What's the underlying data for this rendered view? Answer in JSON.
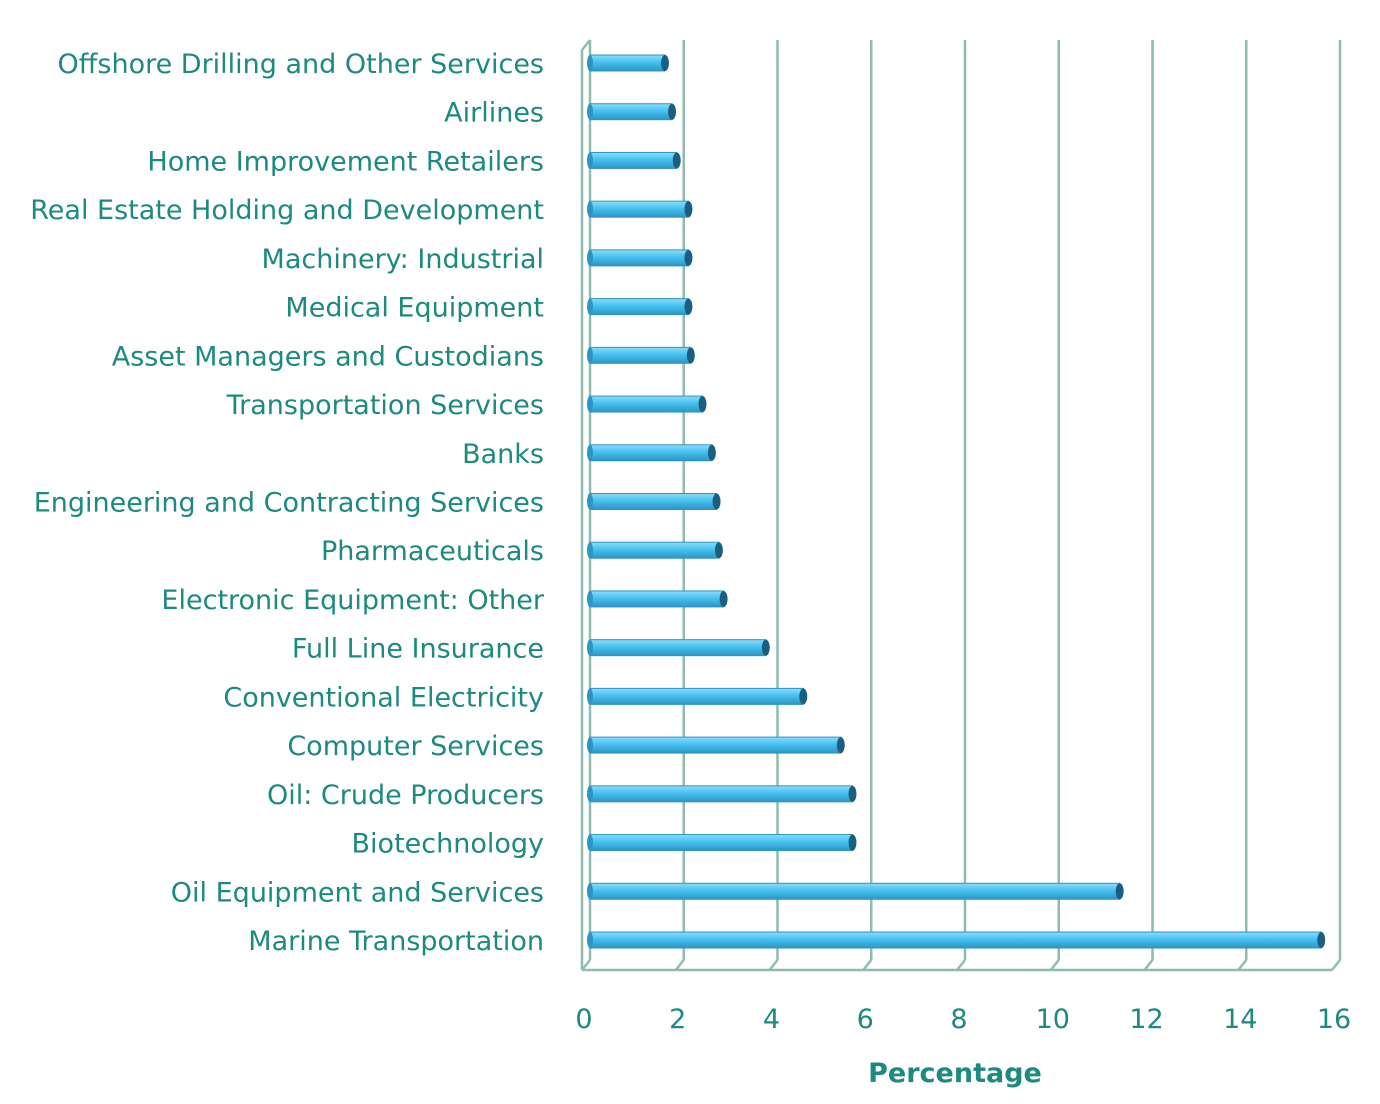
{
  "chart_data": {
    "type": "bar",
    "orientation": "horizontal",
    "xlabel": "Percentage",
    "xlim": [
      0,
      16
    ],
    "xticks": [
      "0",
      "2",
      "4",
      "6",
      "8",
      "10",
      "12",
      "14",
      "16"
    ],
    "grid": true,
    "legend": false,
    "categories": [
      "Offshore Drilling and Other Services",
      "Airlines",
      "Home Improvement Retailers",
      "Real Estate Holding and Development",
      "Machinery: Industrial",
      "Medical Equipment",
      "Asset Managers and Custodians",
      "Transportation Services",
      "Banks",
      "Engineering and Contracting Services",
      "Pharmaceuticals",
      "Electronic Equipment: Other",
      "Full Line Insurance",
      "Conventional Electricity",
      "Computer Services",
      "Oil: Crude Producers",
      "Biotechnology",
      "Oil Equipment and Services",
      "Marine Transportation"
    ],
    "values": [
      1.6,
      1.75,
      1.85,
      2.1,
      2.1,
      2.1,
      2.15,
      2.4,
      2.6,
      2.7,
      2.75,
      2.85,
      3.75,
      4.55,
      5.35,
      5.6,
      5.6,
      11.3,
      15.6
    ],
    "colors": {
      "bar": "#45c1f0",
      "bar_highlight": "#8fdcf8",
      "bar_shade": "#2e95c2",
      "bar_cap": "#1a5f82",
      "grid": "#8fbcb1",
      "text": "#1c8a7e"
    }
  }
}
